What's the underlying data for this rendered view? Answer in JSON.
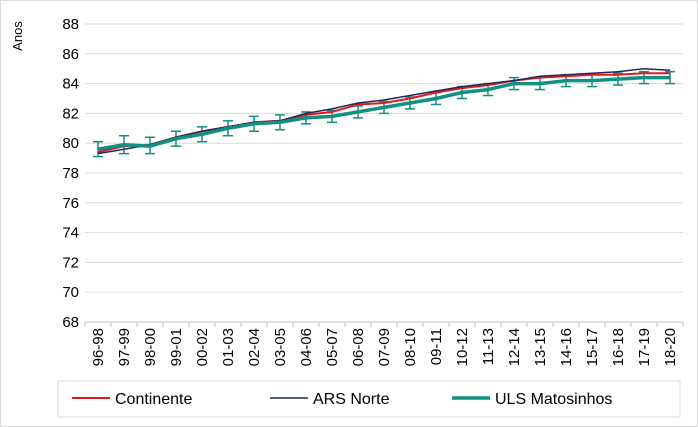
{
  "chart_data": {
    "type": "line",
    "ylabel": "Anos",
    "ylim": [
      68,
      88
    ],
    "yticks": [
      68,
      70,
      72,
      74,
      76,
      78,
      80,
      82,
      84,
      86,
      88
    ],
    "grid": "horizontal",
    "legend_position": "bottom",
    "categories": [
      "96-98",
      "97-99",
      "98-00",
      "99-01",
      "00-02",
      "01-03",
      "02-04",
      "03-05",
      "04-06",
      "05-07",
      "06-08",
      "07-09",
      "08-10",
      "09-11",
      "10-12",
      "11-13",
      "12-14",
      "13-15",
      "14-16",
      "15-17",
      "16-18",
      "17-19",
      "18-20"
    ],
    "series": [
      {
        "name": "Continente",
        "color": "#e31a1c",
        "values": [
          79.4,
          79.8,
          79.9,
          80.4,
          80.8,
          81.1,
          81.4,
          81.5,
          81.9,
          82.1,
          82.6,
          82.7,
          83.0,
          83.4,
          83.7,
          83.9,
          84.2,
          84.4,
          84.5,
          84.6,
          84.6,
          84.7,
          84.7
        ]
      },
      {
        "name": "ARS Norte",
        "color": "#1f2a5c",
        "values": [
          79.3,
          79.6,
          79.9,
          80.4,
          80.8,
          81.1,
          81.4,
          81.5,
          82.0,
          82.3,
          82.7,
          82.9,
          83.2,
          83.5,
          83.8,
          84.0,
          84.2,
          84.5,
          84.6,
          84.7,
          84.8,
          85.0,
          84.9
        ]
      },
      {
        "name": "ULS Matosinhos",
        "color": "#148f84",
        "values": [
          79.6,
          79.9,
          79.8,
          80.3,
          80.6,
          81.0,
          81.3,
          81.4,
          81.7,
          81.8,
          82.1,
          82.4,
          82.7,
          83.0,
          83.4,
          83.6,
          84.0,
          84.0,
          84.2,
          84.2,
          84.3,
          84.4,
          84.4
        ],
        "error_low": [
          79.1,
          79.3,
          79.3,
          79.8,
          80.1,
          80.5,
          80.8,
          80.9,
          81.3,
          81.4,
          81.7,
          82.0,
          82.3,
          82.6,
          83.0,
          83.2,
          83.6,
          83.6,
          83.8,
          83.8,
          83.9,
          84.0,
          84.0
        ],
        "error_high": [
          80.1,
          80.5,
          80.4,
          80.8,
          81.1,
          81.5,
          81.8,
          81.9,
          82.1,
          82.2,
          82.5,
          82.8,
          83.1,
          83.4,
          83.8,
          84.0,
          84.4,
          84.4,
          84.6,
          84.6,
          84.7,
          84.8,
          84.8
        ]
      }
    ]
  }
}
